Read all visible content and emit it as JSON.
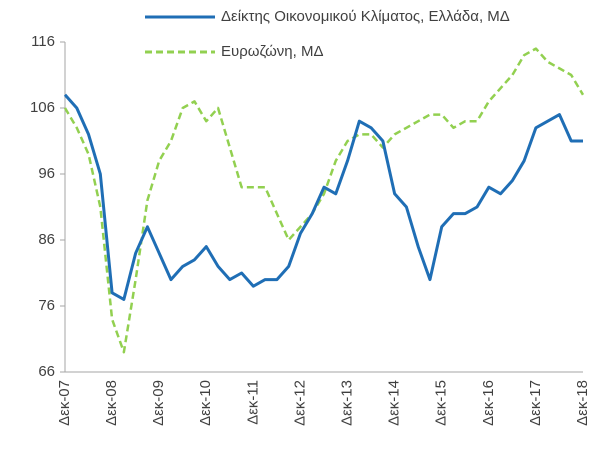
{
  "chart_data": {
    "type": "line",
    "categories": [
      "Δεκ-07",
      null,
      null,
      null,
      "Δεκ-08",
      null,
      null,
      null,
      "Δεκ-09",
      null,
      null,
      null,
      "Δεκ-10",
      null,
      null,
      null,
      "Δεκ-11",
      null,
      null,
      null,
      "Δεκ-12",
      null,
      null,
      null,
      "Δεκ-13",
      null,
      null,
      null,
      "Δεκ-14",
      null,
      null,
      null,
      "Δεκ-15",
      null,
      null,
      null,
      "Δεκ-16",
      null,
      null,
      null,
      "Δεκ-17",
      null,
      null,
      null,
      "Δεκ-18"
    ],
    "series": [
      {
        "name": "Δείκτης Οικονομικού Κλίματος, Ελλάδα, ΜΔ",
        "color": "#1f6eb5",
        "dash": false,
        "values": [
          108,
          106,
          102,
          96,
          78,
          77,
          84,
          88,
          84,
          80,
          82,
          83,
          85,
          82,
          80,
          81,
          79,
          80,
          80,
          82,
          87,
          90,
          94,
          93,
          98,
          104,
          103,
          101,
          93,
          91,
          85,
          80,
          88,
          90,
          90,
          91,
          94,
          93,
          95,
          98,
          103,
          104,
          105,
          101,
          101
        ]
      },
      {
        "name": "Ευρωζώνη, ΜΔ",
        "color": "#92d050",
        "dash": true,
        "values": [
          106,
          103,
          99,
          91,
          74,
          69,
          80,
          92,
          98,
          101,
          106,
          107,
          104,
          106,
          100,
          94,
          94,
          94,
          90,
          86,
          88,
          90,
          93,
          98,
          101,
          102,
          102,
          100,
          102,
          103,
          104,
          105,
          105,
          103,
          104,
          104,
          107,
          109,
          111,
          114,
          115,
          113,
          112,
          111,
          108
        ]
      }
    ],
    "ylim": [
      66,
      116
    ],
    "yticks": [
      66,
      76,
      86,
      96,
      106,
      116
    ]
  }
}
